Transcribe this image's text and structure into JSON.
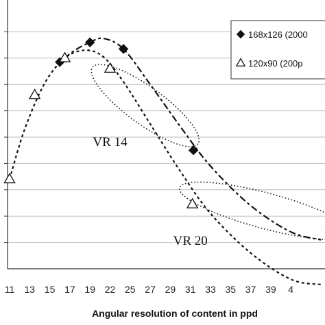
{
  "chart_data": {
    "type": "scatter",
    "title": "",
    "xlabel": "Angular resolution of content in ppd",
    "ylabel": "",
    "x_ticks": [
      "11",
      "13",
      "15",
      "17",
      "19",
      "22",
      "25",
      "27",
      "29",
      "31",
      "33",
      "35",
      "37",
      "39",
      "4"
    ],
    "grid": true,
    "legend": "top-right",
    "series": [
      {
        "name": "168x126 (2000",
        "marker": "filled-diamond",
        "points": [
          [
            16,
            7.85
          ],
          [
            19,
            8.6
          ],
          [
            24,
            8.35
          ],
          [
            31.3,
            4.5
          ]
        ],
        "trend": [
          [
            16,
            7.85
          ],
          [
            17.5,
            8.3
          ],
          [
            19,
            8.6
          ],
          [
            21,
            8.75
          ],
          [
            24,
            8.35
          ],
          [
            27,
            7.0
          ],
          [
            30,
            5.4
          ],
          [
            33,
            3.9
          ],
          [
            37,
            2.4
          ],
          [
            41,
            1.4
          ],
          [
            44,
            1.1
          ]
        ]
      },
      {
        "name": "120x90 (200p",
        "marker": "open-triangle",
        "points": [
          [
            11,
            3.4
          ],
          [
            13.5,
            6.6
          ],
          [
            16.5,
            8.0
          ],
          [
            22,
            7.6
          ],
          [
            31.2,
            2.45
          ]
        ],
        "trend": [
          [
            11,
            3.4
          ],
          [
            12.5,
            5.3
          ],
          [
            14.5,
            7.05
          ],
          [
            16.5,
            8.0
          ],
          [
            18.5,
            8.3
          ],
          [
            21,
            8.05
          ],
          [
            24,
            7.1
          ],
          [
            27,
            5.5
          ],
          [
            30,
            3.7
          ],
          [
            33,
            2.1
          ],
          [
            37,
            0.6
          ],
          [
            41,
            -0.4
          ],
          [
            44,
            -0.6
          ]
        ]
      }
    ],
    "annotations": [
      {
        "label": "VR 14",
        "center": [
          26.5,
          6.2
        ],
        "text_at": [
          22,
          4.85
        ]
      },
      {
        "label": "VR 20",
        "center": [
          38.5,
          2.2
        ],
        "text_at": [
          31,
          1.1
        ]
      }
    ],
    "xlim": [
      11,
      44
    ],
    "ylim": [
      0,
      10
    ]
  },
  "colors": {
    "series": "#111111",
    "grid": "#bbbbbb",
    "background": "#ffffff"
  }
}
